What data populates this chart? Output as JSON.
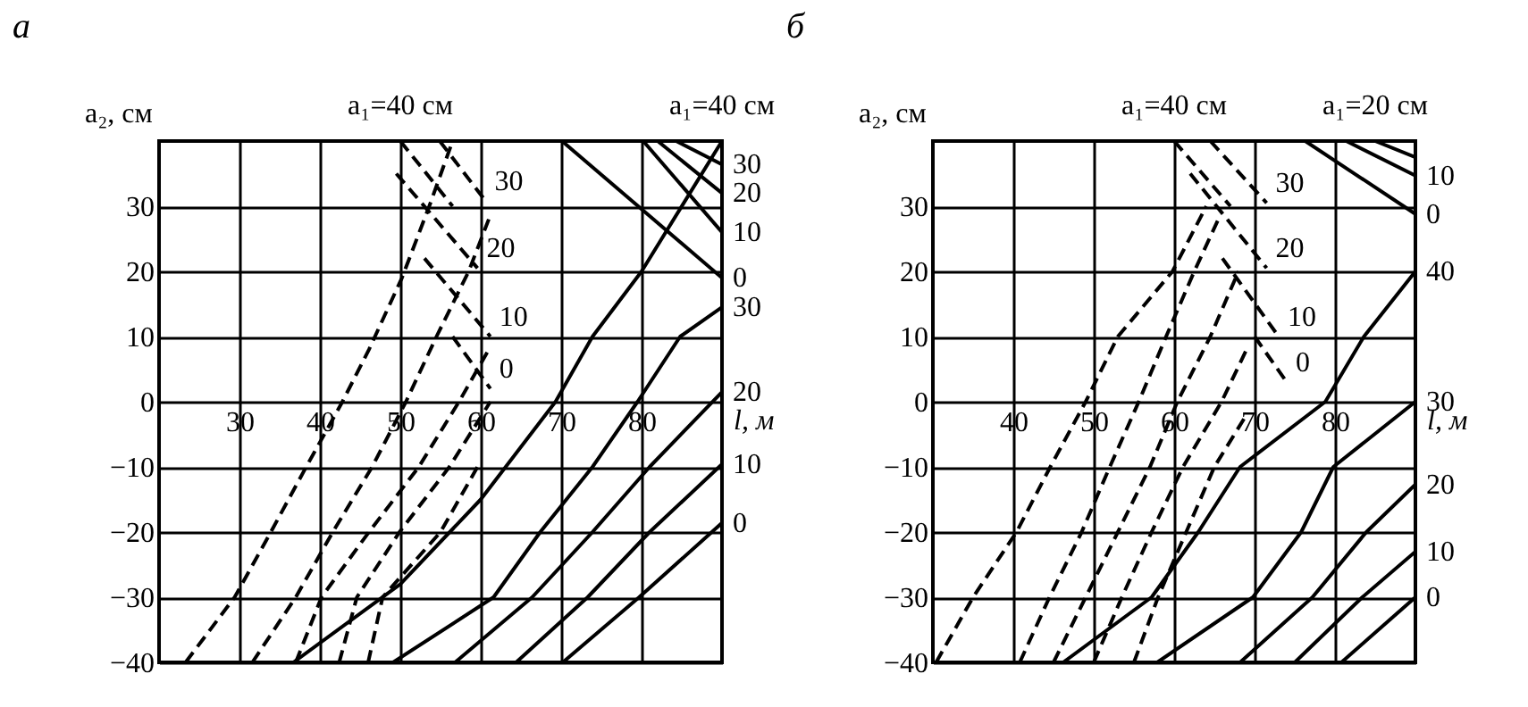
{
  "chart_data": [
    {
      "type": "line",
      "title": "а",
      "xlabel": "l, м",
      "ylabel": "a₂, см",
      "xlim": [
        20,
        90
      ],
      "ylim": [
        -40,
        40
      ],
      "xticks": [
        30,
        40,
        50,
        60,
        70,
        80
      ],
      "yticks": [
        -40,
        -30,
        -20,
        -10,
        0,
        10,
        20,
        30
      ],
      "grid": true,
      "series": [
        {
          "color": "#000000",
          "line_style": "solid",
          "x": [
            36.7,
            50,
            60,
            69.3,
            73.9,
            80,
            90
          ],
          "values": [
            -40,
            -28,
            -15,
            0,
            10,
            20,
            40
          ]
        },
        {
          "color": "#000000",
          "line_style": "solid",
          "x": [
            49.1,
            61.6,
            67.4,
            73.9,
            79.5,
            84.8,
            90
          ],
          "values": [
            -40,
            -30,
            -20,
            -10,
            0,
            10,
            14.5
          ]
        },
        {
          "color": "#000000",
          "line_style": "solid",
          "x": [
            56.8,
            66.4,
            73.9,
            81,
            90
          ],
          "values": [
            -40,
            -30,
            -20,
            -10,
            1.5
          ]
        },
        {
          "color": "#000000",
          "line_style": "solid",
          "x": [
            64.4,
            73.3,
            81,
            90
          ],
          "values": [
            -40,
            -30,
            -20,
            -9.6
          ]
        },
        {
          "color": "#000000",
          "line_style": "solid",
          "x": [
            70.2,
            79.7,
            90
          ],
          "values": [
            -40,
            -30,
            -18.6
          ]
        },
        {
          "color": "#000000",
          "line_style": "solid",
          "x": [
            84.3,
            90
          ],
          "values": [
            40,
            36.4
          ]
        },
        {
          "color": "#000000",
          "line_style": "solid",
          "x": [
            82,
            90
          ],
          "values": [
            40,
            32
          ]
        },
        {
          "color": "#000000",
          "line_style": "solid",
          "x": [
            80.2,
            90
          ],
          "values": [
            40,
            26
          ]
        },
        {
          "color": "#000000",
          "line_style": "solid",
          "x": [
            70.1,
            90
          ],
          "values": [
            40,
            19
          ]
        },
        {
          "color": "#000000",
          "line_style": "dashed",
          "x": [
            23.3,
            29.4,
            33.9,
            38.3,
            42.8,
            46.1,
            50.2,
            53.6,
            56.5
          ],
          "values": [
            -40,
            -30,
            -20,
            -10,
            0,
            8,
            19,
            30,
            40
          ]
        },
        {
          "color": "#000000",
          "line_style": "dashed",
          "x": [
            31.6,
            37,
            41.6,
            46.5,
            50.7,
            54.5,
            58.5,
            61
          ],
          "values": [
            -40,
            -30,
            -20,
            -10,
            0,
            10,
            20,
            28
          ]
        },
        {
          "color": "#000000",
          "line_style": "dashed",
          "x": [
            37,
            40.2,
            46.1,
            52.3,
            57.3,
            61
          ],
          "values": [
            -40,
            -30,
            -20,
            -10,
            0,
            8
          ]
        },
        {
          "color": "#000000",
          "line_style": "dashed",
          "x": [
            42.4,
            44.6,
            49.9,
            56.1,
            61.2
          ],
          "values": [
            -40,
            -30,
            -20,
            -10,
            0
          ]
        },
        {
          "color": "#000000",
          "line_style": "dashed",
          "x": [
            46,
            47.8,
            55,
            59.6
          ],
          "values": [
            -40,
            -30,
            -20,
            -10
          ]
        },
        {
          "color": "#000000",
          "line_style": "dashed",
          "x": [
            50,
            56.5
          ],
          "values": [
            40,
            30
          ]
        },
        {
          "color": "#000000",
          "line_style": "dashed",
          "x": [
            54.9,
            60.6
          ],
          "values": [
            40,
            30.8
          ]
        },
        {
          "color": "#000000",
          "line_style": "dashed",
          "x": [
            49.5,
            59.6
          ],
          "values": [
            35,
            20.5
          ]
        },
        {
          "color": "#000000",
          "line_style": "dashed",
          "x": [
            53,
            61.2
          ],
          "values": [
            22,
            10
          ]
        },
        {
          "color": "#000000",
          "line_style": "dashed",
          "x": [
            56.5,
            61.2
          ],
          "values": [
            10,
            2
          ]
        }
      ],
      "annotations": [
        {
          "text": "a₁=40 см",
          "x": 90,
          "y": 40
        },
        {
          "text": "30",
          "x": 90,
          "y": 14.5
        },
        {
          "text": "20",
          "x": 90,
          "y": 1.5
        },
        {
          "text": "10",
          "x": 90,
          "y": -9.6
        },
        {
          "text": "0",
          "x": 90,
          "y": -18.6
        },
        {
          "text": "30",
          "x": 90,
          "y": 36.4
        },
        {
          "text": "20",
          "x": 90,
          "y": 32
        },
        {
          "text": "10",
          "x": 90,
          "y": 26
        },
        {
          "text": "0",
          "x": 90,
          "y": 19
        },
        {
          "text": "a₁=40 см",
          "x": 50,
          "y": 40
        },
        {
          "text": "30",
          "x": 60.6,
          "y": 30.8
        },
        {
          "text": "20",
          "x": 59.6,
          "y": 20.5
        },
        {
          "text": "10",
          "x": 61.2,
          "y": 10
        },
        {
          "text": "0",
          "x": 61.2,
          "y": 2
        }
      ]
    },
    {
      "type": "line",
      "title": "б",
      "xlabel": "l, м",
      "ylabel": "a₂, см",
      "xlim": [
        30,
        90
      ],
      "ylim": [
        -40,
        40
      ],
      "xticks": [
        40,
        50,
        60,
        70,
        80
      ],
      "yticks": [
        -40,
        -30,
        -20,
        -10,
        0,
        10,
        20,
        30
      ],
      "grid": true,
      "series": [
        {
          "color": "#000000",
          "line_style": "solid",
          "x": [
            46.2,
            57.2,
            63,
            68.2,
            78.8,
            83.6,
            90
          ],
          "values": [
            -40,
            -30,
            -20,
            -10,
            0,
            10,
            20
          ]
        },
        {
          "color": "#000000",
          "line_style": "solid",
          "x": [
            57.9,
            69.8,
            75.8,
            79.8,
            90
          ],
          "values": [
            -40,
            -30,
            -20,
            -10,
            0
          ]
        },
        {
          "color": "#000000",
          "line_style": "solid",
          "x": [
            68.2,
            77.2,
            83.9,
            90
          ],
          "values": [
            -40,
            -30,
            -20,
            -12.7
          ]
        },
        {
          "color": "#000000",
          "line_style": "solid",
          "x": [
            75,
            83.4,
            90
          ],
          "values": [
            -40,
            -30,
            -23
          ]
        },
        {
          "color": "#000000",
          "line_style": "solid",
          "x": [
            80.8,
            90
          ],
          "values": [
            -40,
            -30
          ]
        },
        {
          "color": "#000000",
          "line_style": "solid",
          "x": [
            85,
            90
          ],
          "values": [
            40,
            37.5
          ]
        },
        {
          "color": "#000000",
          "line_style": "solid",
          "x": [
            81.4,
            90
          ],
          "values": [
            40,
            34.7
          ]
        },
        {
          "color": "#000000",
          "line_style": "solid",
          "x": [
            76.3,
            90
          ],
          "values": [
            40,
            28.8
          ]
        },
        {
          "color": "#000000",
          "line_style": "dashed",
          "x": [
            30.4,
            35,
            40.4,
            44.6,
            49,
            53,
            59.8,
            64
          ],
          "values": [
            -40,
            -30,
            -20,
            -10,
            0,
            10,
            20,
            30
          ]
        },
        {
          "color": "#000000",
          "line_style": "dashed",
          "x": [
            40.8,
            44.5,
            48.5,
            52,
            55.6,
            59,
            62.5,
            65.5
          ],
          "values": [
            -40,
            -30,
            -20,
            -10,
            0,
            10,
            20,
            28
          ]
        },
        {
          "color": "#000000",
          "line_style": "dashed",
          "x": [
            45,
            49,
            53,
            57,
            60.4,
            64.5,
            68
          ],
          "values": [
            -40,
            -30,
            -20,
            -10,
            0,
            10,
            20
          ]
        },
        {
          "color": "#000000",
          "line_style": "dashed",
          "x": [
            50,
            53.5,
            57.2,
            61.1,
            65.9,
            69
          ],
          "values": [
            -40,
            -30,
            -20,
            -10,
            0,
            8
          ]
        },
        {
          "color": "#000000",
          "line_style": "dashed",
          "x": [
            55,
            58,
            61.5,
            65,
            69
          ],
          "values": [
            -40,
            -30,
            -20,
            -10,
            -2
          ]
        },
        {
          "color": "#000000",
          "line_style": "dashed",
          "x": [
            60,
            67
          ],
          "values": [
            40,
            30
          ]
        },
        {
          "color": "#000000",
          "line_style": "dashed",
          "x": [
            64.5,
            71.5
          ],
          "values": [
            40,
            30.5
          ]
        },
        {
          "color": "#000000",
          "line_style": "dashed",
          "x": [
            62,
            71.5
          ],
          "values": [
            35,
            20.5
          ]
        },
        {
          "color": "#000000",
          "line_style": "dashed",
          "x": [
            66,
            73
          ],
          "values": [
            22,
            10
          ]
        },
        {
          "color": "#000000",
          "line_style": "dashed",
          "x": [
            70,
            74
          ],
          "values": [
            10,
            3
          ]
        }
      ],
      "annotations": [
        {
          "text": "a₁=20 см",
          "x": 85,
          "y": 40
        },
        {
          "text": "10",
          "x": 90,
          "y": 34.7
        },
        {
          "text": "0",
          "x": 90,
          "y": 28.8
        },
        {
          "text": "40",
          "x": 90,
          "y": 20
        },
        {
          "text": "30",
          "x": 90,
          "y": 0
        },
        {
          "text": "20",
          "x": 90,
          "y": -12.7
        },
        {
          "text": "10",
          "x": 90,
          "y": -23
        },
        {
          "text": "0",
          "x": 90,
          "y": -30
        },
        {
          "text": "a₁=40 см",
          "x": 60,
          "y": 40
        },
        {
          "text": "30",
          "x": 71.5,
          "y": 30.5
        },
        {
          "text": "20",
          "x": 71.5,
          "y": 20.5
        },
        {
          "text": "10",
          "x": 73,
          "y": 10
        },
        {
          "text": "0",
          "x": 74,
          "y": 3
        }
      ]
    }
  ]
}
